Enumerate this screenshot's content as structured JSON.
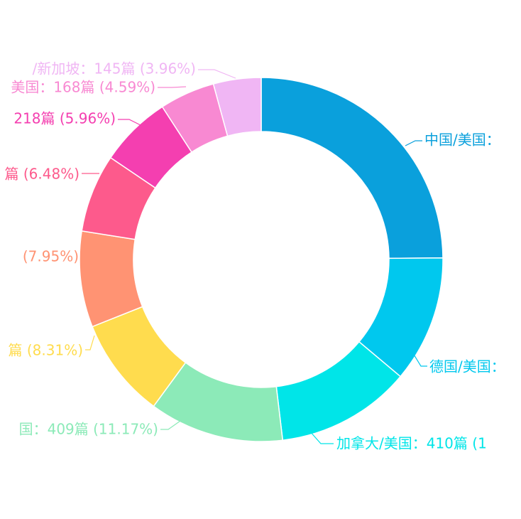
{
  "chart_data": {
    "type": "pie",
    "variant": "donut",
    "series": [
      {
        "label": "中国/美国：",
        "value": null,
        "percent": 23.2,
        "color": "#0aa0dc"
      },
      {
        "label": "德国/美国：",
        "value": null,
        "percent": 10.5,
        "color": "#00c8ee"
      },
      {
        "label": "加拿大/美国：410篇 (1",
        "value": 410,
        "percent": 11.2,
        "color": "#00e5e8"
      },
      {
        "label": "国：409篇 (11.17%)",
        "value": 409,
        "percent": 11.17,
        "color": "#8ceab8"
      },
      {
        "label": "篇 (8.31%)",
        "value": null,
        "percent": 8.31,
        "color": "#ffdc4e"
      },
      {
        "label": "(7.95%)",
        "value": null,
        "percent": 7.95,
        "color": "#ff9373"
      },
      {
        "label": "篇 (6.48%)",
        "value": null,
        "percent": 6.48,
        "color": "#fd5a8c"
      },
      {
        "label": "218篇 (5.96%)",
        "value": 218,
        "percent": 5.96,
        "color": "#f43fb0"
      },
      {
        "label": "美国：168篇 (4.59%)",
        "value": 168,
        "percent": 4.59,
        "color": "#f889d2"
      },
      {
        "label": "/新加坡：145篇 (3.96%)",
        "value": 145,
        "percent": 3.96,
        "color": "#f0b6f4"
      }
    ]
  }
}
